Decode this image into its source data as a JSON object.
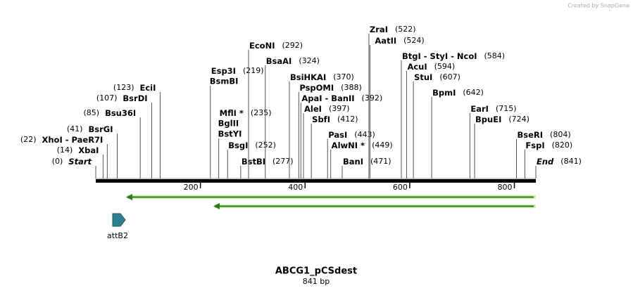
{
  "credit": "Created by SnapGene",
  "map": {
    "title": "ABCG1_pCSdest",
    "subtitle": "841 bp",
    "length": 841,
    "ruler_ticks": [
      200,
      400,
      600,
      800
    ],
    "feature": {
      "name": "attB2"
    },
    "enzymes": [
      {
        "names": [
          "Start"
        ],
        "site": 0,
        "site_label": "(0)"
      },
      {
        "names": [
          "XbaI"
        ],
        "site": 14,
        "site_label": "(14)"
      },
      {
        "names": [
          "XhoI  -  PaeR7I"
        ],
        "site": 22,
        "site_label": "(22)"
      },
      {
        "names": [
          "BsrGI"
        ],
        "site": 41,
        "site_label": "(41)"
      },
      {
        "names": [
          "Bsu36I"
        ],
        "site": 85,
        "site_label": "(85)"
      },
      {
        "names": [
          "BsrDI"
        ],
        "site": 107,
        "site_label": "(107)"
      },
      {
        "names": [
          "EciI"
        ],
        "site": 123,
        "site_label": "(123)"
      },
      {
        "names": [
          "Esp3I",
          "BsmBI"
        ],
        "site": 219,
        "site_label": "(219)"
      },
      {
        "names": [
          "MflI *",
          "BglII",
          "BstYI"
        ],
        "site": 235,
        "site_label": "(235)"
      },
      {
        "names": [
          "BsgI"
        ],
        "site": 252,
        "site_label": "(252)"
      },
      {
        "names": [
          "BstBI"
        ],
        "site": 277,
        "site_label": "(277)"
      },
      {
        "names": [
          "EcoNI"
        ],
        "site": 292,
        "site_label": "(292)"
      },
      {
        "names": [
          "BsaAI"
        ],
        "site": 324,
        "site_label": "(324)"
      },
      {
        "names": [
          "BsiHKAI"
        ],
        "site": 370,
        "site_label": "(370)"
      },
      {
        "names": [
          "PspOMI"
        ],
        "site": 388,
        "site_label": "(388)"
      },
      {
        "names": [
          "ApaI  -  BanII"
        ],
        "site": 392,
        "site_label": "(392)"
      },
      {
        "names": [
          "AleI"
        ],
        "site": 397,
        "site_label": "(397)"
      },
      {
        "names": [
          "SbfI"
        ],
        "site": 412,
        "site_label": "(412)"
      },
      {
        "names": [
          "PasI"
        ],
        "site": 443,
        "site_label": "(443)"
      },
      {
        "names": [
          "AlwNI *"
        ],
        "site": 449,
        "site_label": "(449)"
      },
      {
        "names": [
          "BanI"
        ],
        "site": 471,
        "site_label": "(471)"
      },
      {
        "names": [
          "ZraI"
        ],
        "site": 522,
        "site_label": "(522)"
      },
      {
        "names": [
          "AatII"
        ],
        "site": 524,
        "site_label": "(524)"
      },
      {
        "names": [
          "BtgI  -  StyI  -  NcoI"
        ],
        "site": 584,
        "site_label": "(584)"
      },
      {
        "names": [
          "AcuI"
        ],
        "site": 594,
        "site_label": "(594)"
      },
      {
        "names": [
          "StuI"
        ],
        "site": 607,
        "site_label": "(607)"
      },
      {
        "names": [
          "BpmI"
        ],
        "site": 642,
        "site_label": "(642)"
      },
      {
        "names": [
          "EarI"
        ],
        "site": 715,
        "site_label": "(715)"
      },
      {
        "names": [
          "BpuEI"
        ],
        "site": 724,
        "site_label": "(724)"
      },
      {
        "names": [
          "BseRI"
        ],
        "site": 804,
        "site_label": "(804)"
      },
      {
        "names": [
          "FspI"
        ],
        "site": 820,
        "site_label": "(820)"
      },
      {
        "names": [
          "End"
        ],
        "site": 841,
        "site_label": "(841)"
      }
    ]
  }
}
